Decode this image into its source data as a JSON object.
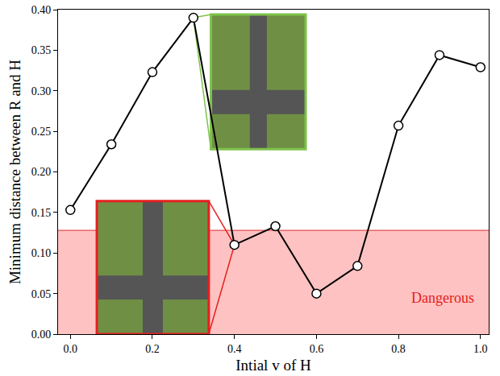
{
  "chart_data": {
    "type": "line",
    "x_label": "Intial v of H",
    "y_label": "Minimum distance between R and H",
    "x": [
      0.0,
      0.1,
      0.2,
      0.3,
      0.4,
      0.5,
      0.6,
      0.7,
      0.8,
      0.9,
      1.0
    ],
    "values": [
      0.153,
      0.234,
      0.323,
      0.39,
      0.11,
      0.133,
      0.05,
      0.084,
      0.257,
      0.344,
      0.329
    ],
    "color": "#000000",
    "marker": "circle",
    "danger_threshold": 0.128,
    "annotations": [
      "Dangerous"
    ],
    "xlim": [
      -0.03,
      1.02
    ],
    "ylim": [
      0,
      0.4
    ],
    "xticks": [
      {
        "value": 0,
        "label": "0.0"
      },
      {
        "value": 0.2,
        "label": "0.2"
      },
      {
        "value": 0.4,
        "label": "0.4"
      },
      {
        "value": 0.6,
        "label": "0.6"
      },
      {
        "value": 0.8,
        "label": "0.8"
      },
      {
        "value": 1,
        "label": "1.0"
      }
    ],
    "yticks": [
      {
        "value": 0,
        "label": "0.00"
      },
      {
        "value": 0.05,
        "label": "0.05"
      },
      {
        "value": 0.1,
        "label": "0.10"
      },
      {
        "value": 0.15,
        "label": "0.15"
      },
      {
        "value": 0.2,
        "label": "0.20"
      },
      {
        "value": 0.25,
        "label": "0.25"
      },
      {
        "value": 0.3,
        "label": "0.30"
      },
      {
        "value": 0.35,
        "label": "0.35"
      },
      {
        "value": 0.4,
        "label": "0.40"
      }
    ],
    "grid": false
  }
}
